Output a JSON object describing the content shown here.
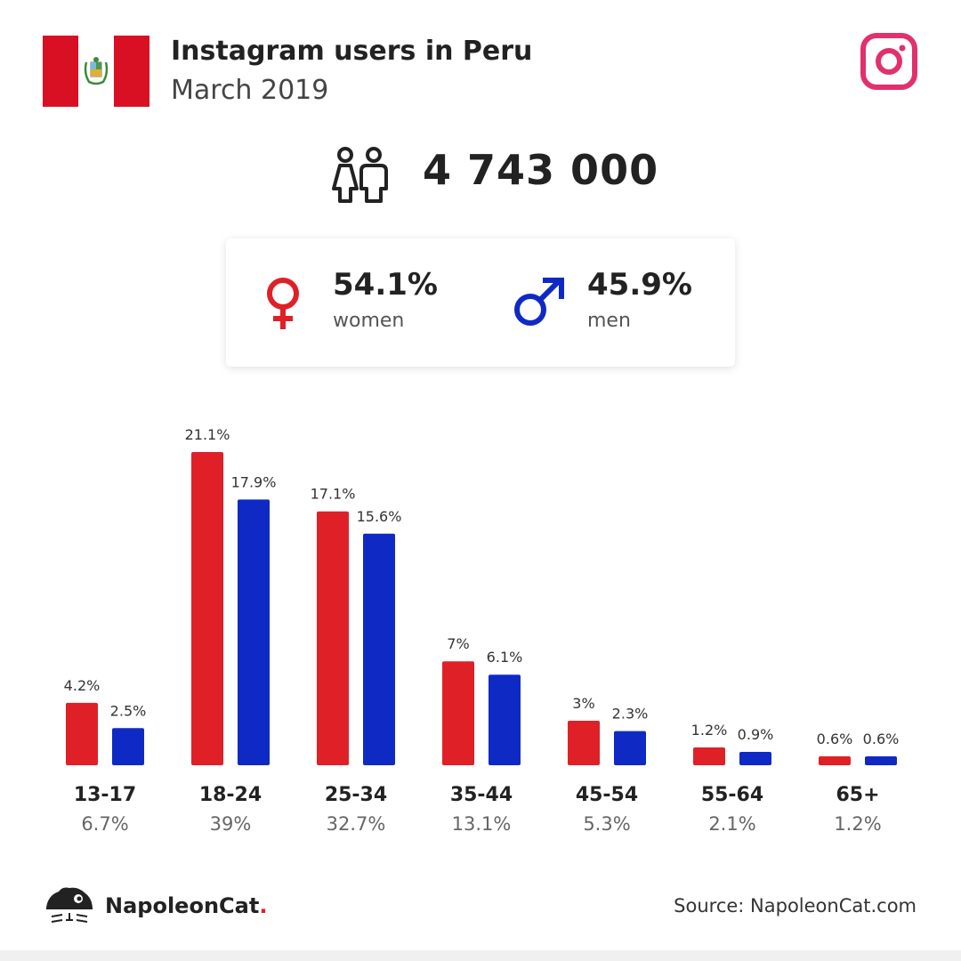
{
  "header": {
    "title": "Instagram users in Peru",
    "subtitle": "March 2019"
  },
  "summary": {
    "total": "4 743 000"
  },
  "gender": {
    "women_pct": "54.1%",
    "women_label": "women",
    "men_pct": "45.9%",
    "men_label": "men"
  },
  "colors": {
    "women": "#e02027",
    "men": "#0f2ac4",
    "instagram": "#e1306c",
    "peru_red": "#d91023"
  },
  "icons": [
    "peru-flag-icon",
    "instagram-icon",
    "users-icon",
    "female-icon",
    "male-icon",
    "napoleoncat-logo-icon"
  ],
  "chart_data": {
    "type": "bar",
    "categories": [
      "13-17",
      "18-24",
      "25-34",
      "35-44",
      "45-54",
      "55-64",
      "65+"
    ],
    "category_totals": [
      "6.7%",
      "39%",
      "32.7%",
      "13.1%",
      "5.3%",
      "2.1%",
      "1.2%"
    ],
    "series": [
      {
        "name": "women",
        "values": [
          4.2,
          21.1,
          17.1,
          7,
          3,
          1.2,
          0.6
        ],
        "labels": [
          "4.2%",
          "21.1%",
          "17.1%",
          "7%",
          "3%",
          "1.2%",
          "0.6%"
        ]
      },
      {
        "name": "men",
        "values": [
          2.5,
          17.9,
          15.6,
          6.1,
          2.3,
          0.9,
          0.6
        ],
        "labels": [
          "2.5%",
          "17.9%",
          "15.6%",
          "6.1%",
          "2.3%",
          "0.9%",
          "0.6%"
        ]
      }
    ],
    "ylim": [
      0,
      21.1
    ]
  },
  "footer": {
    "brand_name": "NapoleonCat",
    "brand_dot": ".",
    "source": "Source: NapoleonCat.com"
  }
}
